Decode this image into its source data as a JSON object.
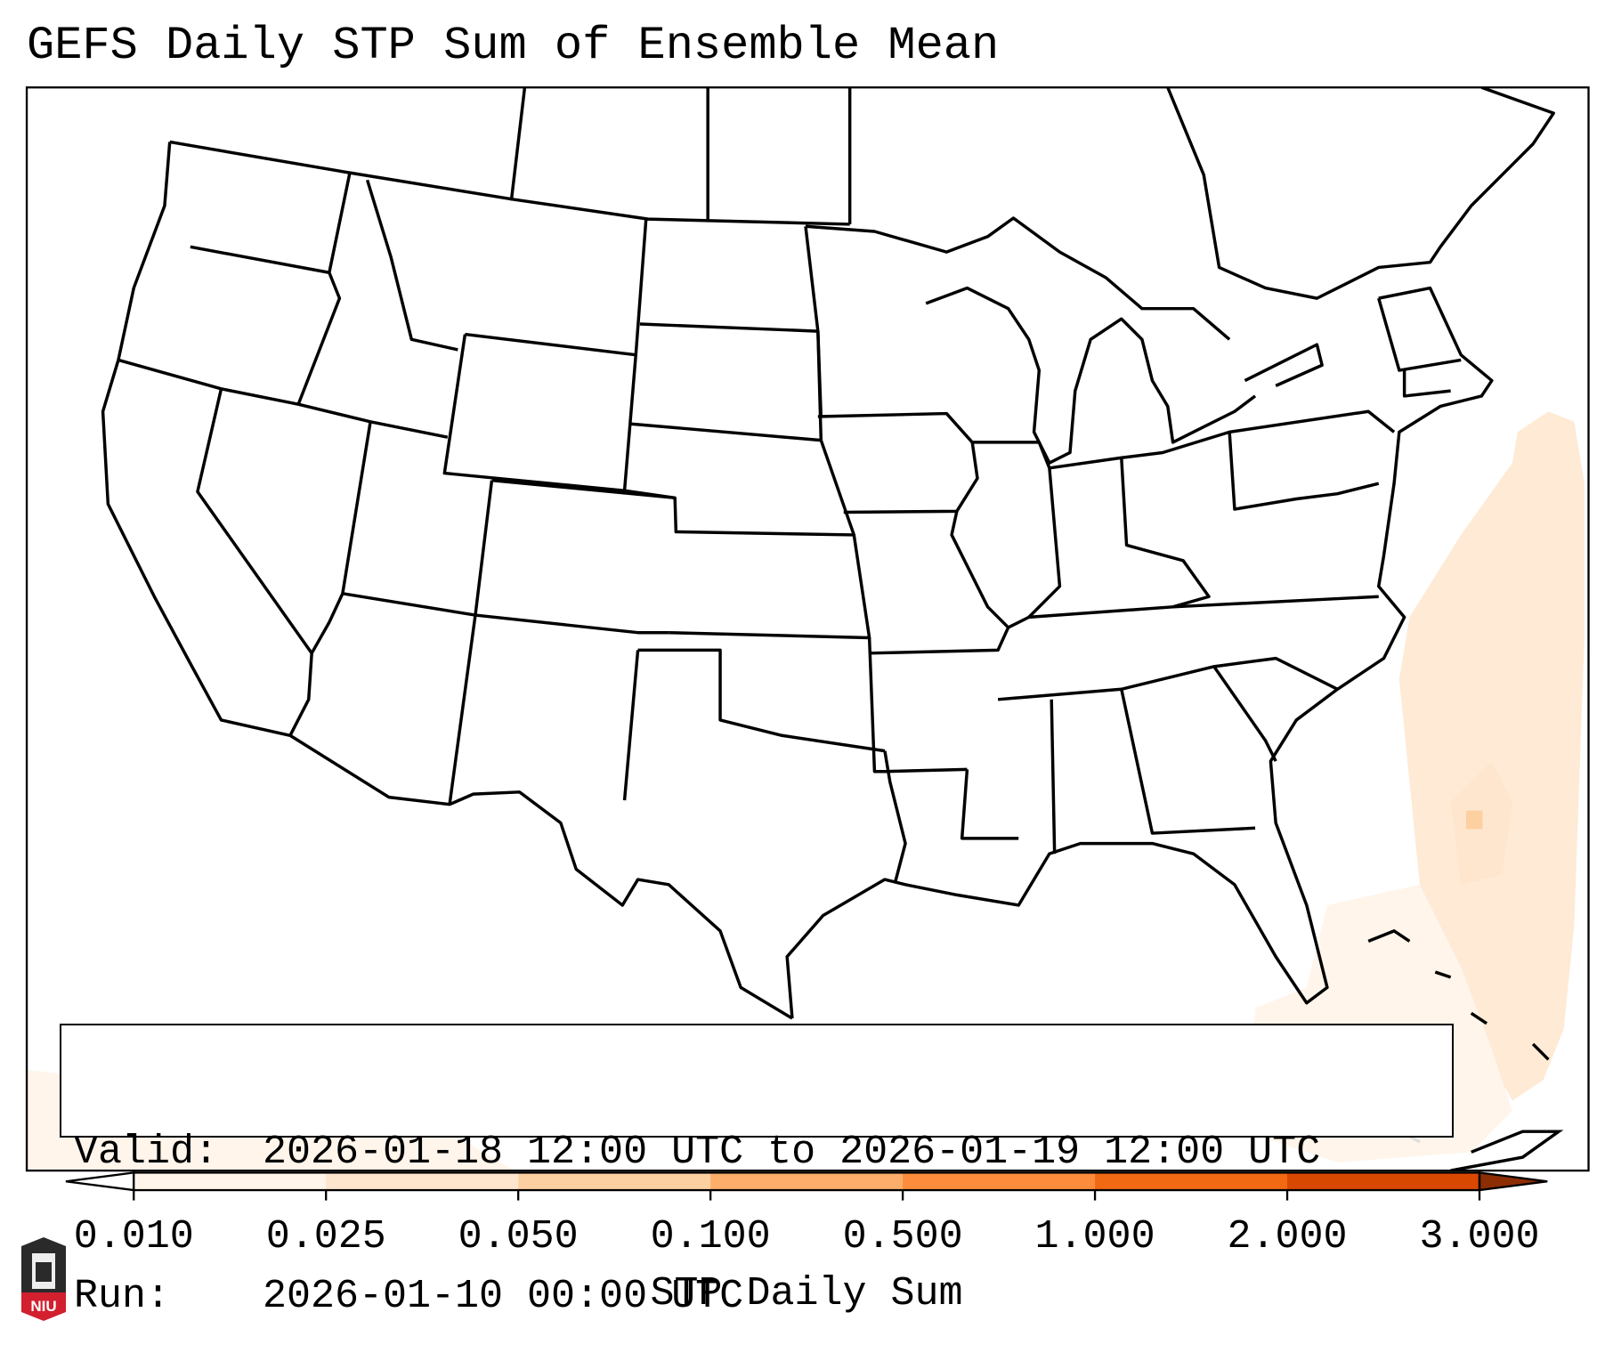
{
  "title": "GEFS Daily STP Sum of Ensemble Mean",
  "legend": {
    "valid_label": "Valid:",
    "valid_value": "2026-01-18 12:00 UTC to 2026-01-19 12:00 UTC",
    "run_label": "Run:",
    "run_value": "2026-01-10 00:00 UTC"
  },
  "colorbar": {
    "label": "STP Daily Sum",
    "ticks": [
      "0.010",
      "0.025",
      "0.050",
      "0.100",
      "0.500",
      "1.000",
      "2.000",
      "3.000"
    ],
    "colors": [
      "#fff5eb",
      "#fee6ce",
      "#fdd0a2",
      "#fdae6b",
      "#fd8d3c",
      "#f16913",
      "#d94801"
    ],
    "under_color": "#ffffff",
    "over_color": "#8c2d04"
  },
  "logo": {
    "text": "NIU"
  }
}
